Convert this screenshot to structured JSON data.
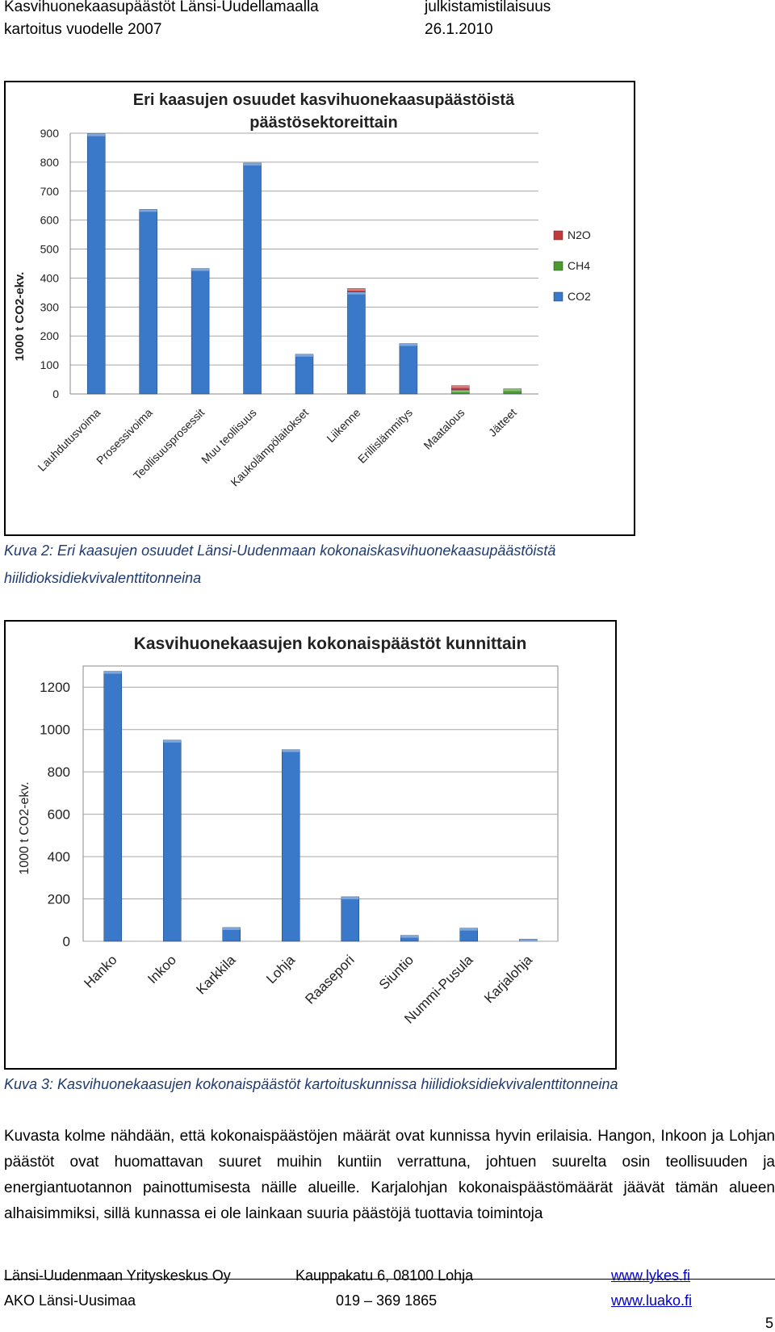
{
  "header": {
    "title_line1": "Kasvihuonekaasupäästöt Länsi-Uudellamaalla",
    "title_line2": "kartoitus vuodelle 2007",
    "status": "julkistamistilaisuus",
    "date": "26.1.2010"
  },
  "charts": [
    {
      "title_line1": "Eri kaasujen osuudet kasvihuonekaasupäästöistä",
      "title_line2": "päästösektoreittain",
      "ylabel": "1000 t CO2-ekv.",
      "yticks": [
        "0",
        "100",
        "200",
        "300",
        "400",
        "500",
        "600",
        "700",
        "800",
        "900"
      ]
    },
    {
      "title": "Kasvihuonekaasujen kokonaispäästöt kunnittain",
      "ylabel": "1000 t CO2-ekv.",
      "yticks": [
        "0",
        "200",
        "400",
        "600",
        "800",
        "1000",
        "1200"
      ]
    }
  ],
  "chart_data": [
    {
      "type": "bar",
      "stacked": true,
      "title": "Eri kaasujen osuudet kasvihuonekaasupäästöistä päästösektoreittain",
      "ylabel": "1000 t CO2-ekv.",
      "ylim": [
        0,
        900
      ],
      "grid": true,
      "legend_position": "right",
      "categories": [
        "Lauhdutusvoima",
        "Prosessivoima",
        "Teollisuusprosessit",
        "Muu teollisuus",
        "Kaukolämpölaitokset",
        "Liikenne",
        "Erillislämmitys",
        "Maatalous",
        "Jätteet"
      ],
      "series": [
        {
          "name": "CO2",
          "color": "#3a78c9",
          "values": [
            898,
            637,
            433,
            797,
            137,
            352,
            174,
            0,
            0
          ]
        },
        {
          "name": "CH4",
          "color": "#4a9a2e",
          "values": [
            0,
            0,
            0,
            0,
            0,
            0,
            0,
            14,
            18
          ]
        },
        {
          "name": "N2O",
          "color": "#c0393b",
          "values": [
            0,
            0,
            0,
            0,
            0,
            12,
            0,
            15,
            0
          ]
        }
      ]
    },
    {
      "type": "bar",
      "title": "Kasvihuonekaasujen kokonaispäästöt kunnittain",
      "ylabel": "1000 t CO2-ekv.",
      "ylim": [
        0,
        1300
      ],
      "grid": true,
      "categories": [
        "Hanko",
        "Inkoo",
        "Karkkila",
        "Lohja",
        "Raasepori",
        "Siuntio",
        "Nummi-Pusula",
        "Karjalohja"
      ],
      "series": [
        {
          "color": "#3a78c9",
          "values": [
            1275,
            950,
            65,
            905,
            210,
            28,
            62,
            10
          ]
        }
      ]
    }
  ],
  "captions": {
    "fig2_line1": "Kuva 2: Eri kaasujen osuudet Länsi-Uudenmaan kokonaiskasvihuonekaasupäästöistä",
    "fig2_line2": "hiilidioksidiekvivalenttitonneina",
    "fig3": "Kuva 3: Kasvihuonekaasujen kokonaispäästöt kartoituskunnissa hiilidioksidiekvivalenttitonneina"
  },
  "body": {
    "paragraph": "Kuvasta kolme nähdään, että kokonaispäästöjen määrät ovat kunnissa hyvin erilaisia. Hangon, Inkoon ja Lohjan päästöt ovat huomattavan suuret muihin kuntiin verrattuna, johtuen suurelta osin teollisuuden ja energiantuotannon painottumisesta näille alueille. Karjalohjan kokonaispäästömäärät jäävät tämän alueen alhaisimmiksi, sillä kunnassa ei ole lainkaan suuria päästöjä tuottavia toimintoja"
  },
  "footer": {
    "org1": "Länsi-Uudenmaan Yrityskeskus Oy",
    "address": "Kauppakatu 6, 08100 Lohja",
    "web1": "www.lykes.fi",
    "org2": "AKO Länsi-Uusimaa",
    "phone": "019 – 369 1865",
    "web2": "www.luako.fi",
    "page": "5"
  }
}
